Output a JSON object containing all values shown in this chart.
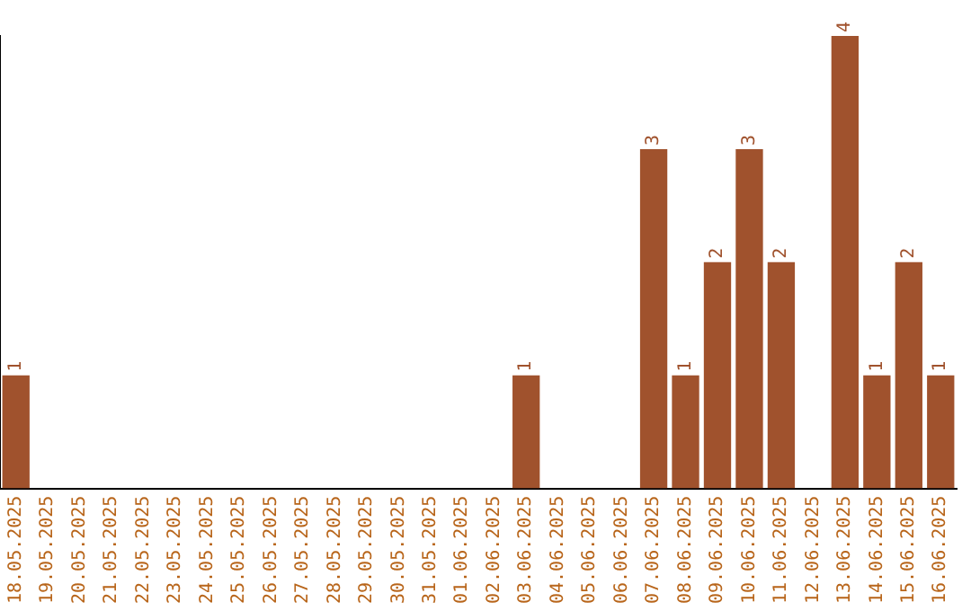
{
  "chart_data": {
    "type": "bar",
    "categories": [
      "18.05.2025",
      "19.05.2025",
      "20.05.2025",
      "21.05.2025",
      "22.05.2025",
      "23.05.2025",
      "24.05.2025",
      "25.05.2025",
      "26.05.2025",
      "27.05.2025",
      "28.05.2025",
      "29.05.2025",
      "30.05.2025",
      "31.05.2025",
      "01.06.2025",
      "02.06.2025",
      "03.06.2025",
      "04.06.2025",
      "05.06.2025",
      "06.06.2025",
      "07.06.2025",
      "08.06.2025",
      "09.06.2025",
      "10.06.2025",
      "11.06.2025",
      "12.06.2025",
      "13.06.2025",
      "14.06.2025",
      "15.06.2025",
      "16.06.2025"
    ],
    "values": [
      1,
      0,
      0,
      0,
      0,
      0,
      0,
      0,
      0,
      0,
      0,
      0,
      0,
      0,
      0,
      0,
      1,
      0,
      0,
      0,
      3,
      1,
      2,
      3,
      2,
      0,
      4,
      1,
      2,
      1
    ],
    "value_labels": [
      "1",
      null,
      null,
      null,
      null,
      null,
      null,
      null,
      null,
      null,
      null,
      null,
      null,
      null,
      null,
      null,
      "1",
      null,
      null,
      null,
      "3",
      "1",
      "2",
      "3",
      "2",
      null,
      "4",
      "1",
      "2",
      "1"
    ],
    "color": "#a0522d",
    "ylim": [
      0,
      4
    ],
    "tick_labels": "x",
    "grid": false,
    "legend": false
  }
}
